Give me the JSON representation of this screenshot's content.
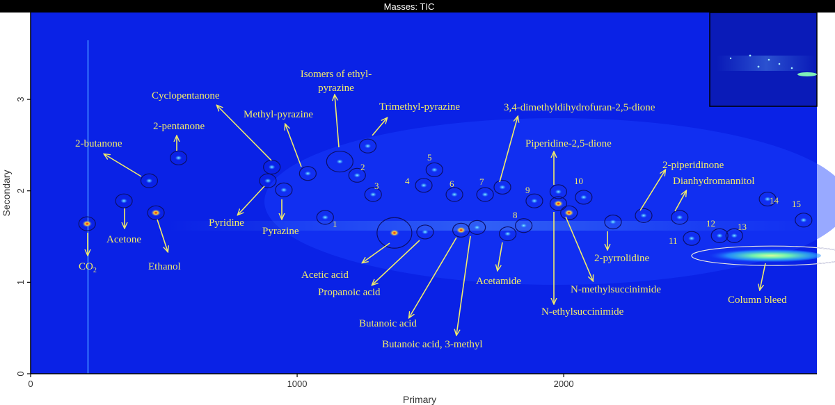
{
  "chart_data": {
    "type": "heatmap",
    "title": "Masses: TIC",
    "xlabel": "Primary",
    "ylabel": "Secondary",
    "xlim": [
      0,
      2950
    ],
    "ylim": [
      0,
      3.95
    ],
    "x_ticks": [
      0,
      1000,
      2000
    ],
    "y_ticks": [
      0,
      1,
      2,
      3
    ],
    "colors": {
      "background": "#0a22e6",
      "label": "#f2ec6a",
      "hot": "#e01010",
      "bleed": "#7cf0a0"
    },
    "compounds": [
      {
        "label": "CO",
        "label_sub": "2",
        "x": 212,
        "y": 1.64
      },
      {
        "label": "Acetone",
        "x": 350,
        "y": 1.89
      },
      {
        "label": "2-butanone",
        "x": 445,
        "y": 2.11
      },
      {
        "label": "Ethanol",
        "x": 470,
        "y": 1.76
      },
      {
        "label": "2-pentanone",
        "x": 555,
        "y": 2.36
      },
      {
        "label": "Cyclopentanone",
        "x": 905,
        "y": 2.26
      },
      {
        "label": "Pyridine",
        "x": 890,
        "y": 2.11
      },
      {
        "label": "Pyrazine",
        "x": 950,
        "y": 2.01
      },
      {
        "label": "Methyl-pyrazine",
        "x": 1040,
        "y": 2.19
      },
      {
        "label": "Isomers of ethyl-pyrazine",
        "x": 1160,
        "y": 2.32
      },
      {
        "label": "Trimethyl-pyrazine",
        "x": 1265,
        "y": 2.49
      },
      {
        "label": "Acetic acid",
        "x": 1365,
        "y": 1.54
      },
      {
        "label": "Propanoic acid",
        "x": 1480,
        "y": 1.55
      },
      {
        "label": "Butanoic acid",
        "x": 1615,
        "y": 1.57
      },
      {
        "label": "Butanoic acid, 3-methyl",
        "x": 1675,
        "y": 1.6
      },
      {
        "label": "Acetamide",
        "x": 1790,
        "y": 1.53
      },
      {
        "label": "3,4-dimethyldihydrofuran-2,5-dione",
        "x": 1770,
        "y": 2.04
      },
      {
        "label": "Piperidine-2,5-dione",
        "x": 1980,
        "y": 1.99
      },
      {
        "label": "N-ethylsuccinimide",
        "x": 1980,
        "y": 1.86
      },
      {
        "label": "N-methylsuccinimide",
        "x": 2020,
        "y": 1.76
      },
      {
        "label": "2-pyrrolidine",
        "x": 2185,
        "y": 1.66
      },
      {
        "label": "2-piperidinone",
        "x": 2300,
        "y": 1.73
      },
      {
        "label": "Dianhydromannitol",
        "x": 2435,
        "y": 1.71
      },
      {
        "label": "Column bleed",
        "x": 2780,
        "y": 1.29
      }
    ],
    "numbered_peaks": [
      {
        "label": "1",
        "x": 1105,
        "y": 1.71
      },
      {
        "label": "2",
        "x": 1225,
        "y": 2.17
      },
      {
        "label": "3",
        "x": 1285,
        "y": 1.96
      },
      {
        "label": "4",
        "x": 1475,
        "y": 2.06
      },
      {
        "label": "5",
        "x": 1515,
        "y": 2.23
      },
      {
        "label": "6",
        "x": 1590,
        "y": 1.96
      },
      {
        "label": "7",
        "x": 1705,
        "y": 1.96
      },
      {
        "label": "8",
        "x": 1850,
        "y": 1.62
      },
      {
        "label": "9",
        "x": 1890,
        "y": 1.89
      },
      {
        "label": "10",
        "x": 2075,
        "y": 1.93
      },
      {
        "label": "11",
        "x": 2480,
        "y": 1.48
      },
      {
        "label": "12",
        "x": 2585,
        "y": 1.51
      },
      {
        "label": "13",
        "x": 2640,
        "y": 1.51
      },
      {
        "label": "14",
        "x": 2765,
        "y": 1.91
      },
      {
        "label": "15",
        "x": 2900,
        "y": 1.68
      }
    ]
  }
}
